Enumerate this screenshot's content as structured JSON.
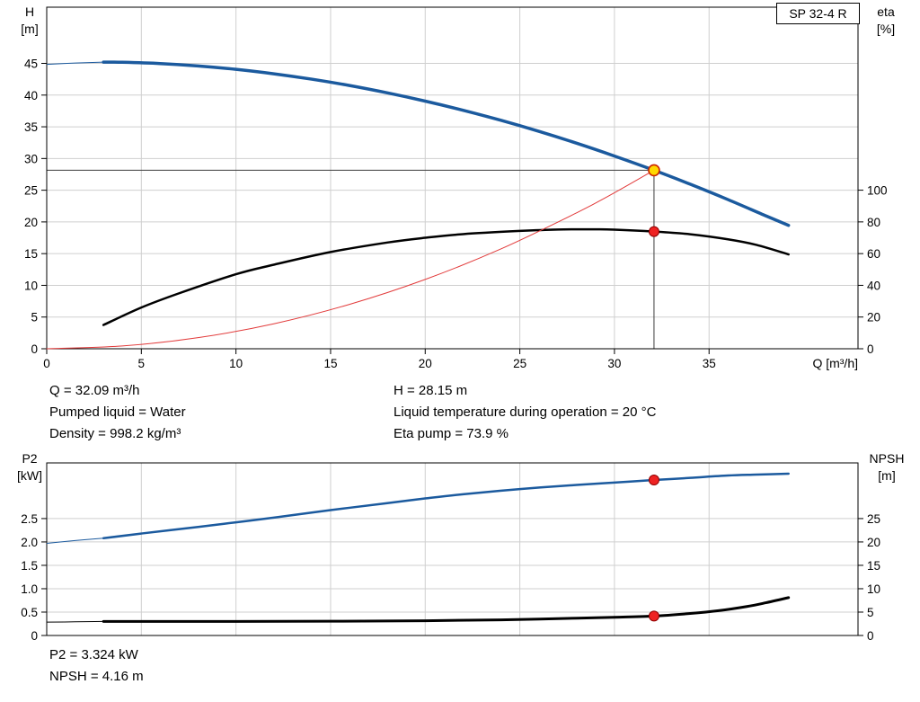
{
  "pump": {
    "model": "SP 32-4 R"
  },
  "labels": {
    "top_left_axis": [
      "H",
      "[m]"
    ],
    "top_right_axis": [
      "eta",
      "[%]"
    ],
    "x_axis": "Q [m³/h]",
    "bottom_left_axis": [
      "P2",
      "[kW]"
    ],
    "bottom_right_axis": [
      "NPSH",
      "[m]"
    ]
  },
  "info": {
    "q": "Q = 32.09 m³/h",
    "pumped_liquid": "Pumped liquid = Water",
    "density": "Density = 998.2 kg/m³",
    "h": "H = 28.15 m",
    "liquid_temp": "Liquid temperature during operation = 20 °C",
    "eta_pump": "Eta pump = 73.9 %",
    "p2": "P2 = 3.324 kW",
    "npsh": "NPSH = 4.16 m"
  },
  "colors": {
    "head_curve": "#1b5a9e",
    "eta_curve": "#000000",
    "system_curve": "#e23b3b",
    "p2_curve": "#1b5a9e",
    "npsh_curve": "#000000",
    "marker_red": "#ee2222",
    "duty_fill": "#ffd800",
    "duty_stroke": "#cc2200",
    "grid": "#cfcfcf",
    "axis": "#000000",
    "crosshair": "#3c3c3c"
  },
  "chart_data": [
    {
      "id": "head-eta-chart",
      "type": "line",
      "title": "SP 32-4 R",
      "grid": true,
      "x_axis": {
        "label": "Q [m³/h]",
        "min": 0,
        "max": 42.87,
        "show_tick_labels": true,
        "ticks": [
          {
            "v": 0,
            "label": "0"
          },
          {
            "v": 5,
            "label": "5"
          },
          {
            "v": 10,
            "label": "10"
          },
          {
            "v": 15,
            "label": "15"
          },
          {
            "v": 20,
            "label": "20"
          },
          {
            "v": 25,
            "label": "25"
          },
          {
            "v": 30,
            "label": "30"
          },
          {
            "v": 35,
            "label": "35"
          }
        ]
      },
      "y_left": {
        "label": "H [m]",
        "min": 0,
        "max": 53.86,
        "ticks": [
          {
            "v": 0,
            "label": "0"
          },
          {
            "v": 5,
            "label": "5"
          },
          {
            "v": 10,
            "label": "10"
          },
          {
            "v": 15,
            "label": "15"
          },
          {
            "v": 20,
            "label": "20"
          },
          {
            "v": 25,
            "label": "25"
          },
          {
            "v": 30,
            "label": "30"
          },
          {
            "v": 35,
            "label": "35"
          },
          {
            "v": 40,
            "label": "40"
          },
          {
            "v": 45,
            "label": "45"
          }
        ]
      },
      "y_right": {
        "label": "eta [%]",
        "min": 0,
        "max": 215.4,
        "ticks": [
          {
            "v": 0,
            "label": "0"
          },
          {
            "v": 20,
            "label": "20"
          },
          {
            "v": 40,
            "label": "40"
          },
          {
            "v": 60,
            "label": "60"
          },
          {
            "v": 80,
            "label": "80"
          },
          {
            "v": 100,
            "label": "100"
          }
        ]
      },
      "duty_point": {
        "q": 32.09,
        "h": 28.15,
        "eta": 73.9
      },
      "crosshair": {
        "q": 32.09,
        "value": 28.15
      },
      "series": [
        {
          "name": "head-curve",
          "axis": "left",
          "color": "head_curve",
          "width": 3.5,
          "thin_points": [
            [
              0,
              44.85
            ],
            [
              1.5,
              45.05
            ],
            [
              3,
              45.2
            ]
          ],
          "points": [
            [
              3,
              45.2
            ],
            [
              4,
              45.17
            ],
            [
              6,
              44.97
            ],
            [
              8,
              44.6
            ],
            [
              10,
              44.06
            ],
            [
              12,
              43.36
            ],
            [
              14,
              42.51
            ],
            [
              16,
              41.51
            ],
            [
              18,
              40.35
            ],
            [
              20,
              39.05
            ],
            [
              22,
              37.61
            ],
            [
              24,
              36.02
            ],
            [
              26,
              34.29
            ],
            [
              28,
              32.41
            ],
            [
              30,
              30.39
            ],
            [
              32.09,
              28.15
            ],
            [
              34,
              25.95
            ],
            [
              36,
              23.52
            ],
            [
              38,
              20.96
            ],
            [
              39.2,
              19.46
            ]
          ]
        },
        {
          "name": "efficiency-curve",
          "axis": "right",
          "color": "eta_curve",
          "width": 2.5,
          "points": [
            [
              3,
              15
            ],
            [
              5,
              26
            ],
            [
              7,
              35
            ],
            [
              10,
              47
            ],
            [
              12,
              53
            ],
            [
              15,
              61
            ],
            [
              18,
              67
            ],
            [
              20,
              70
            ],
            [
              22,
              72.3
            ],
            [
              25,
              74.3
            ],
            [
              27,
              75.2
            ],
            [
              29,
              75.3
            ],
            [
              30,
              75.1
            ],
            [
              32.09,
              73.9
            ],
            [
              34,
              72.2
            ],
            [
              36,
              69
            ],
            [
              37.5,
              65.5
            ],
            [
              39.2,
              59.5
            ]
          ]
        },
        {
          "name": "system-curve",
          "axis": "left",
          "color": "system_curve",
          "width": 1,
          "points": [
            [
              0,
              0
            ],
            [
              4,
              0.44
            ],
            [
              8,
              1.75
            ],
            [
              12,
              3.94
            ],
            [
              16,
              7.0
            ],
            [
              20,
              10.93
            ],
            [
              24,
              15.74
            ],
            [
              28,
              21.43
            ],
            [
              30,
              24.6
            ],
            [
              32.09,
              28.15
            ]
          ]
        }
      ],
      "markers": [
        {
          "name": "duty-point",
          "q": 32.09,
          "value": 28.15,
          "axis": "left",
          "style": "duty"
        },
        {
          "name": "eta-point",
          "q": 32.09,
          "value": 73.9,
          "axis": "right",
          "style": "dot"
        }
      ]
    },
    {
      "id": "p2-npsh-chart",
      "type": "line",
      "grid": true,
      "x_axis": {
        "label": "",
        "min": 0,
        "max": 42.87,
        "show_tick_labels": false,
        "ticks": [
          {
            "v": 0,
            "label": "0"
          },
          {
            "v": 5,
            "label": "5"
          },
          {
            "v": 10,
            "label": "10"
          },
          {
            "v": 15,
            "label": "15"
          },
          {
            "v": 20,
            "label": "20"
          },
          {
            "v": 25,
            "label": "25"
          },
          {
            "v": 30,
            "label": "30"
          },
          {
            "v": 35,
            "label": "35"
          }
        ]
      },
      "y_left": {
        "label": "P2 [kW]",
        "min": 0,
        "max": 3.69,
        "ticks": [
          {
            "v": 0,
            "label": "0"
          },
          {
            "v": 0.5,
            "label": "0.5"
          },
          {
            "v": 1,
            "label": "1.0"
          },
          {
            "v": 1.5,
            "label": "1.5"
          },
          {
            "v": 2,
            "label": "2.0"
          },
          {
            "v": 2.5,
            "label": "2.5"
          }
        ]
      },
      "y_right": {
        "label": "NPSH [m]",
        "min": 0,
        "max": 36.9,
        "ticks": [
          {
            "v": 0,
            "label": "0"
          },
          {
            "v": 5,
            "label": "5"
          },
          {
            "v": 10,
            "label": "10"
          },
          {
            "v": 15,
            "label": "15"
          },
          {
            "v": 20,
            "label": "20"
          },
          {
            "v": 25,
            "label": "25"
          }
        ]
      },
      "duty_point": {
        "q": 32.09,
        "p2": 3.324,
        "npsh": 4.16
      },
      "series": [
        {
          "name": "p2-curve",
          "axis": "left",
          "color": "p2_curve",
          "width": 2.5,
          "thin_points": [
            [
              0,
              1.97
            ],
            [
              1.5,
              2.03
            ],
            [
              3,
              2.08
            ]
          ],
          "points": [
            [
              3,
              2.08
            ],
            [
              5,
              2.18
            ],
            [
              8,
              2.32
            ],
            [
              10,
              2.42
            ],
            [
              12,
              2.52
            ],
            [
              15,
              2.68
            ],
            [
              18,
              2.83
            ],
            [
              20,
              2.93
            ],
            [
              22,
              3.02
            ],
            [
              25,
              3.13
            ],
            [
              28,
              3.22
            ],
            [
              30,
              3.27
            ],
            [
              32.09,
              3.324
            ],
            [
              34,
              3.37
            ],
            [
              36,
              3.42
            ],
            [
              37.5,
              3.44
            ],
            [
              39.2,
              3.46
            ]
          ]
        },
        {
          "name": "npsh-curve",
          "axis": "right",
          "color": "npsh_curve",
          "width": 3,
          "thin_points": [
            [
              0,
              2.85
            ],
            [
              1.5,
              2.92
            ],
            [
              3,
              3.0
            ]
          ],
          "points": [
            [
              3,
              3.0
            ],
            [
              5,
              3.0
            ],
            [
              10,
              3.0
            ],
            [
              15,
              3.05
            ],
            [
              20,
              3.15
            ],
            [
              24,
              3.35
            ],
            [
              27,
              3.6
            ],
            [
              30,
              3.9
            ],
            [
              32.09,
              4.16
            ],
            [
              34,
              4.7
            ],
            [
              35.5,
              5.3
            ],
            [
              37,
              6.2
            ],
            [
              38,
              7.0
            ],
            [
              39.2,
              8.1
            ]
          ]
        }
      ],
      "markers": [
        {
          "name": "p2-point",
          "q": 32.09,
          "value": 3.324,
          "axis": "left",
          "style": "dot"
        },
        {
          "name": "npsh-point",
          "q": 32.09,
          "value": 4.16,
          "axis": "right",
          "style": "dot"
        }
      ]
    }
  ]
}
